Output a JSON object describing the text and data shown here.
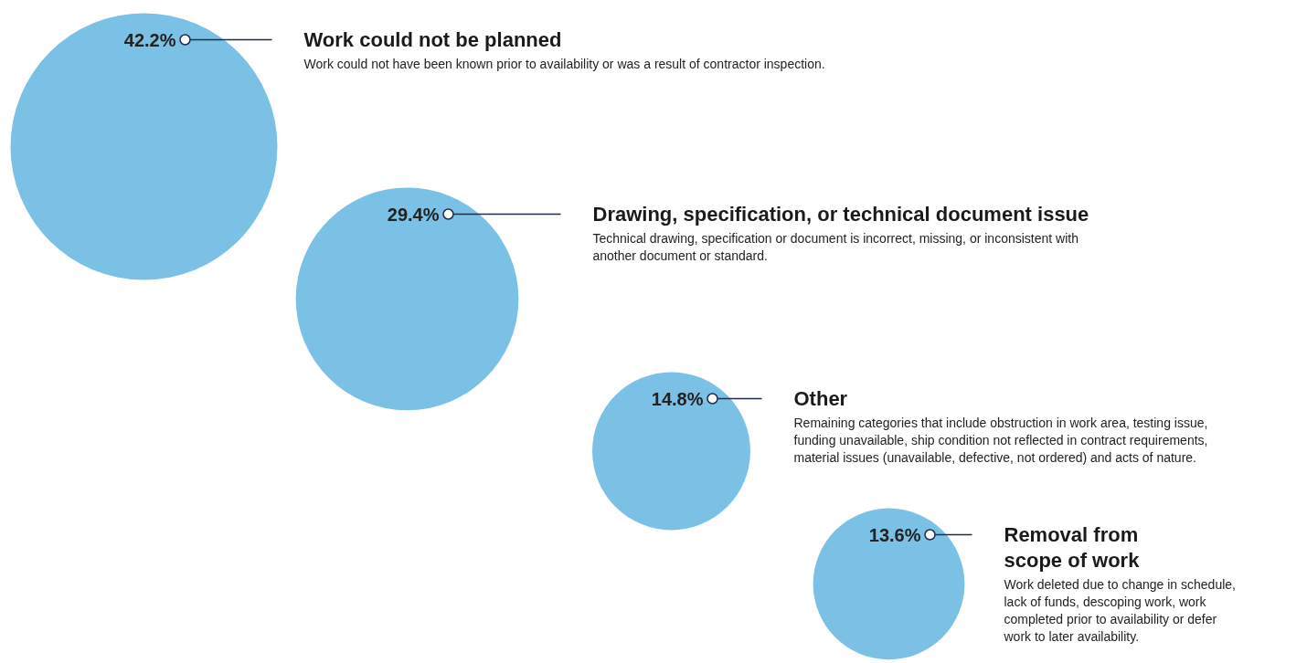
{
  "chart_data": {
    "type": "other",
    "categories": [
      "Work could not be planned",
      "Drawing, specification, or technical document issue",
      "Other",
      "Removal from scope of work"
    ],
    "values": [
      42.2,
      29.4,
      14.8,
      13.6
    ],
    "value_labels": [
      "42.2%",
      "29.4%",
      "14.8%",
      "13.6%"
    ],
    "colors": [
      "#7bc1e6",
      "#7bc1e6",
      "#7bc1e6",
      "#7bc1e6"
    ],
    "annotations": [
      "Work could not have been known prior to availability or was a result of contractor inspection.",
      "Technical drawing, specification or document is incorrect, missing, or inconsistent with another document or standard.",
      "Remaining categories that include obstruction in work area, testing issue, funding unavailable, ship condition not reflected in contract requirements, material issues (unavailable, defective, not ordered) and acts of nature.",
      "Work deleted due to change in schedule, lack of funds, descoping work, work completed prior to availability or defer work to later availability."
    ]
  }
}
